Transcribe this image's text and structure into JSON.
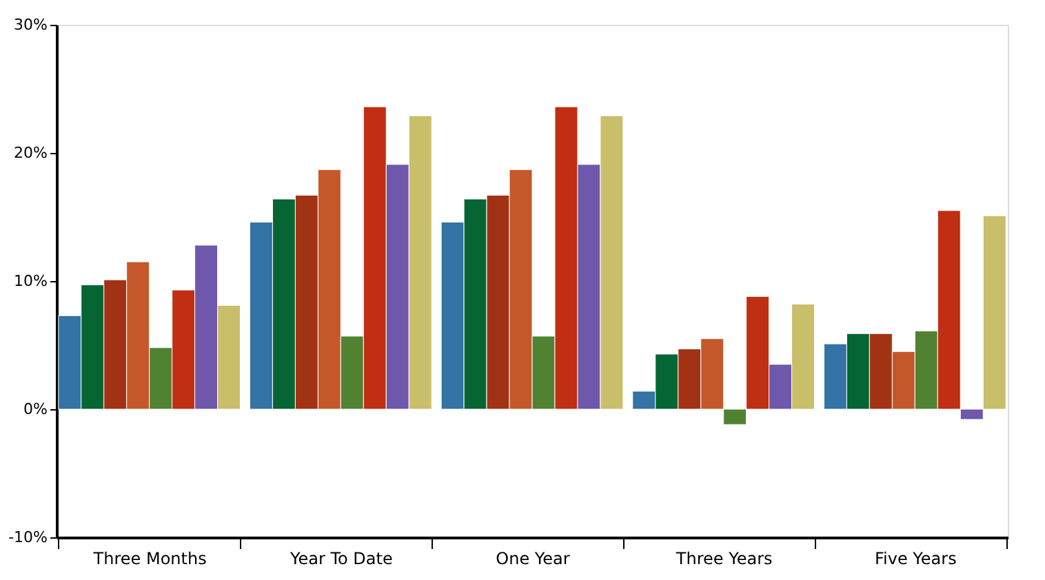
{
  "chart_data": {
    "type": "bar",
    "categories": [
      "Three Months",
      "Year To Date",
      "One Year",
      "Three Years",
      "Five Years"
    ],
    "series": [
      {
        "color": "#3373a5",
        "values": [
          7.3,
          14.6,
          14.6,
          1.4,
          5.1
        ]
      },
      {
        "color": "#056633",
        "values": [
          9.7,
          16.4,
          16.4,
          4.3,
          5.9
        ]
      },
      {
        "color": "#a23214",
        "values": [
          10.1,
          16.7,
          16.7,
          4.7,
          5.9
        ]
      },
      {
        "color": "#c5582a",
        "values": [
          11.5,
          18.7,
          18.7,
          5.5,
          4.5
        ]
      },
      {
        "color": "#508232",
        "values": [
          4.8,
          5.7,
          5.7,
          -1.2,
          6.1
        ]
      },
      {
        "color": "#c02f12",
        "values": [
          9.3,
          23.6,
          23.6,
          8.8,
          15.5
        ]
      },
      {
        "color": "#6f57ab",
        "values": [
          12.8,
          19.1,
          19.1,
          3.5,
          -0.8
        ]
      },
      {
        "color": "#c9be6a",
        "values": [
          8.1,
          22.9,
          22.9,
          8.2,
          15.1
        ]
      }
    ],
    "ylim": [
      -10,
      30
    ],
    "yticks": [
      {
        "value": -10,
        "label": "-10%"
      },
      {
        "value": 0,
        "label": "0%"
      },
      {
        "value": 10,
        "label": "10%"
      },
      {
        "value": 20,
        "label": "20%"
      },
      {
        "value": 30,
        "label": "30%"
      }
    ],
    "grid": false,
    "legend": false
  }
}
